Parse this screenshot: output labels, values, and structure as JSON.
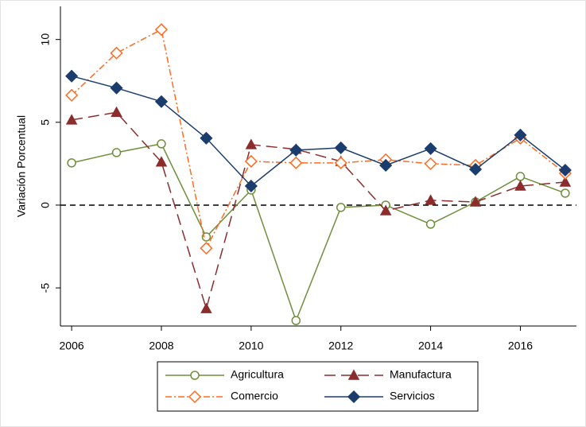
{
  "chart_data": {
    "type": "line",
    "y_label": "Variación Porcentual",
    "x": [
      2006,
      2007,
      2008,
      2009,
      2010,
      2011,
      2012,
      2013,
      2014,
      2015,
      2016,
      2017
    ],
    "xlim": [
      2005.75,
      2017.25
    ],
    "xticks": [
      2006,
      2008,
      2010,
      2012,
      2014,
      2016
    ],
    "ylim": [
      -7.3,
      12
    ],
    "yticks": [
      -5,
      0,
      5,
      10
    ],
    "reference_line": 0,
    "series": [
      {
        "name": "Agricultura",
        "color": "#6f8f3c",
        "marker": "circle",
        "filled": false,
        "dash": "solid",
        "values": [
          2.55,
          3.17,
          3.7,
          -1.92,
          0.91,
          -6.97,
          -0.14,
          0.0,
          -1.15,
          0.19,
          1.73,
          0.72
        ]
      },
      {
        "name": "Manufactura",
        "color": "#8c2d2d",
        "marker": "triangle",
        "filled": true,
        "dash": "dashed",
        "values": [
          5.14,
          5.6,
          2.6,
          -6.25,
          3.65,
          3.37,
          2.64,
          -0.34,
          0.29,
          0.19,
          1.15,
          1.39
        ]
      },
      {
        "name": "Comercio",
        "color": "#ff6a1f",
        "marker": "diamond",
        "filled": false,
        "dash": "dashdot",
        "values": [
          6.63,
          9.18,
          10.6,
          -2.6,
          2.64,
          2.55,
          2.55,
          2.74,
          2.5,
          2.4,
          4.04,
          1.92
        ]
      },
      {
        "name": "Servicios",
        "color": "#1b3d6d",
        "marker": "diamond",
        "filled": true,
        "dash": "solid",
        "values": [
          7.79,
          7.07,
          6.25,
          4.04,
          1.15,
          3.32,
          3.46,
          2.4,
          3.41,
          2.16,
          4.23,
          2.11
        ]
      }
    ]
  }
}
